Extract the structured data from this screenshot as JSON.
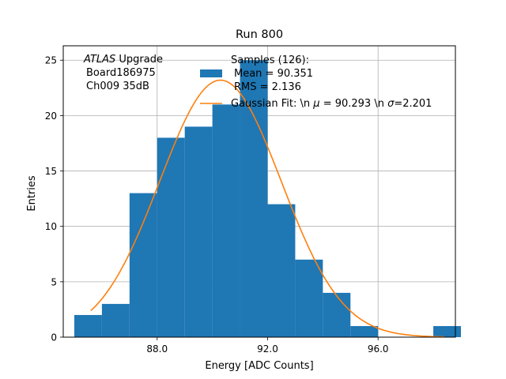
{
  "chart_data": {
    "type": "bar",
    "title": "Run 800",
    "xlabel": "Energy [ADC Counts]",
    "ylabel": "Entries",
    "xlim": [
      84.6,
      98.8
    ],
    "ylim": [
      0,
      26.3
    ],
    "x_ticks": [
      88.0,
      92.0,
      96.0
    ],
    "x_tick_labels": [
      "88.0",
      "92.0",
      "96.0"
    ],
    "y_ticks": [
      0,
      5,
      10,
      15,
      20,
      25
    ],
    "y_tick_labels": [
      "0",
      "5",
      "10",
      "15",
      "20",
      "25"
    ],
    "grid": true,
    "annotation": {
      "atlas": "ATLAS",
      "upgrade": " Upgrade",
      "board": "Board186975",
      "channel": "Ch009 35dB"
    },
    "histogram": {
      "name": "Samples (126):",
      "color": "#1f77b4",
      "bin_edges": [
        85.0,
        86.0,
        87.0,
        88.0,
        89.0,
        90.0,
        91.0,
        92.0,
        93.0,
        94.0,
        95.0,
        96.0,
        97.0,
        98.0,
        99.0
      ],
      "counts": [
        2,
        3,
        13,
        18,
        19,
        21,
        25,
        12,
        7,
        4,
        1,
        0,
        0,
        1
      ]
    },
    "fit": {
      "color": "#ff7f0e",
      "mu": 90.293,
      "sigma": 2.201,
      "amplitude": 23.2,
      "x_range": [
        85.6,
        98.4
      ]
    },
    "legend": {
      "position": "top-center",
      "entries": [
        {
          "label_lines": [
            "Samples (126):",
            "Mean = 90.351",
            "RMS = 2.136"
          ]
        },
        {
          "label_prefix": "Gaussian Fit: \\n ",
          "mu_symbol": "μ",
          "label_mid": " = 90.293 \\n ",
          "sigma_symbol": "σ",
          "label_suffix": "=2.201"
        }
      ]
    }
  }
}
